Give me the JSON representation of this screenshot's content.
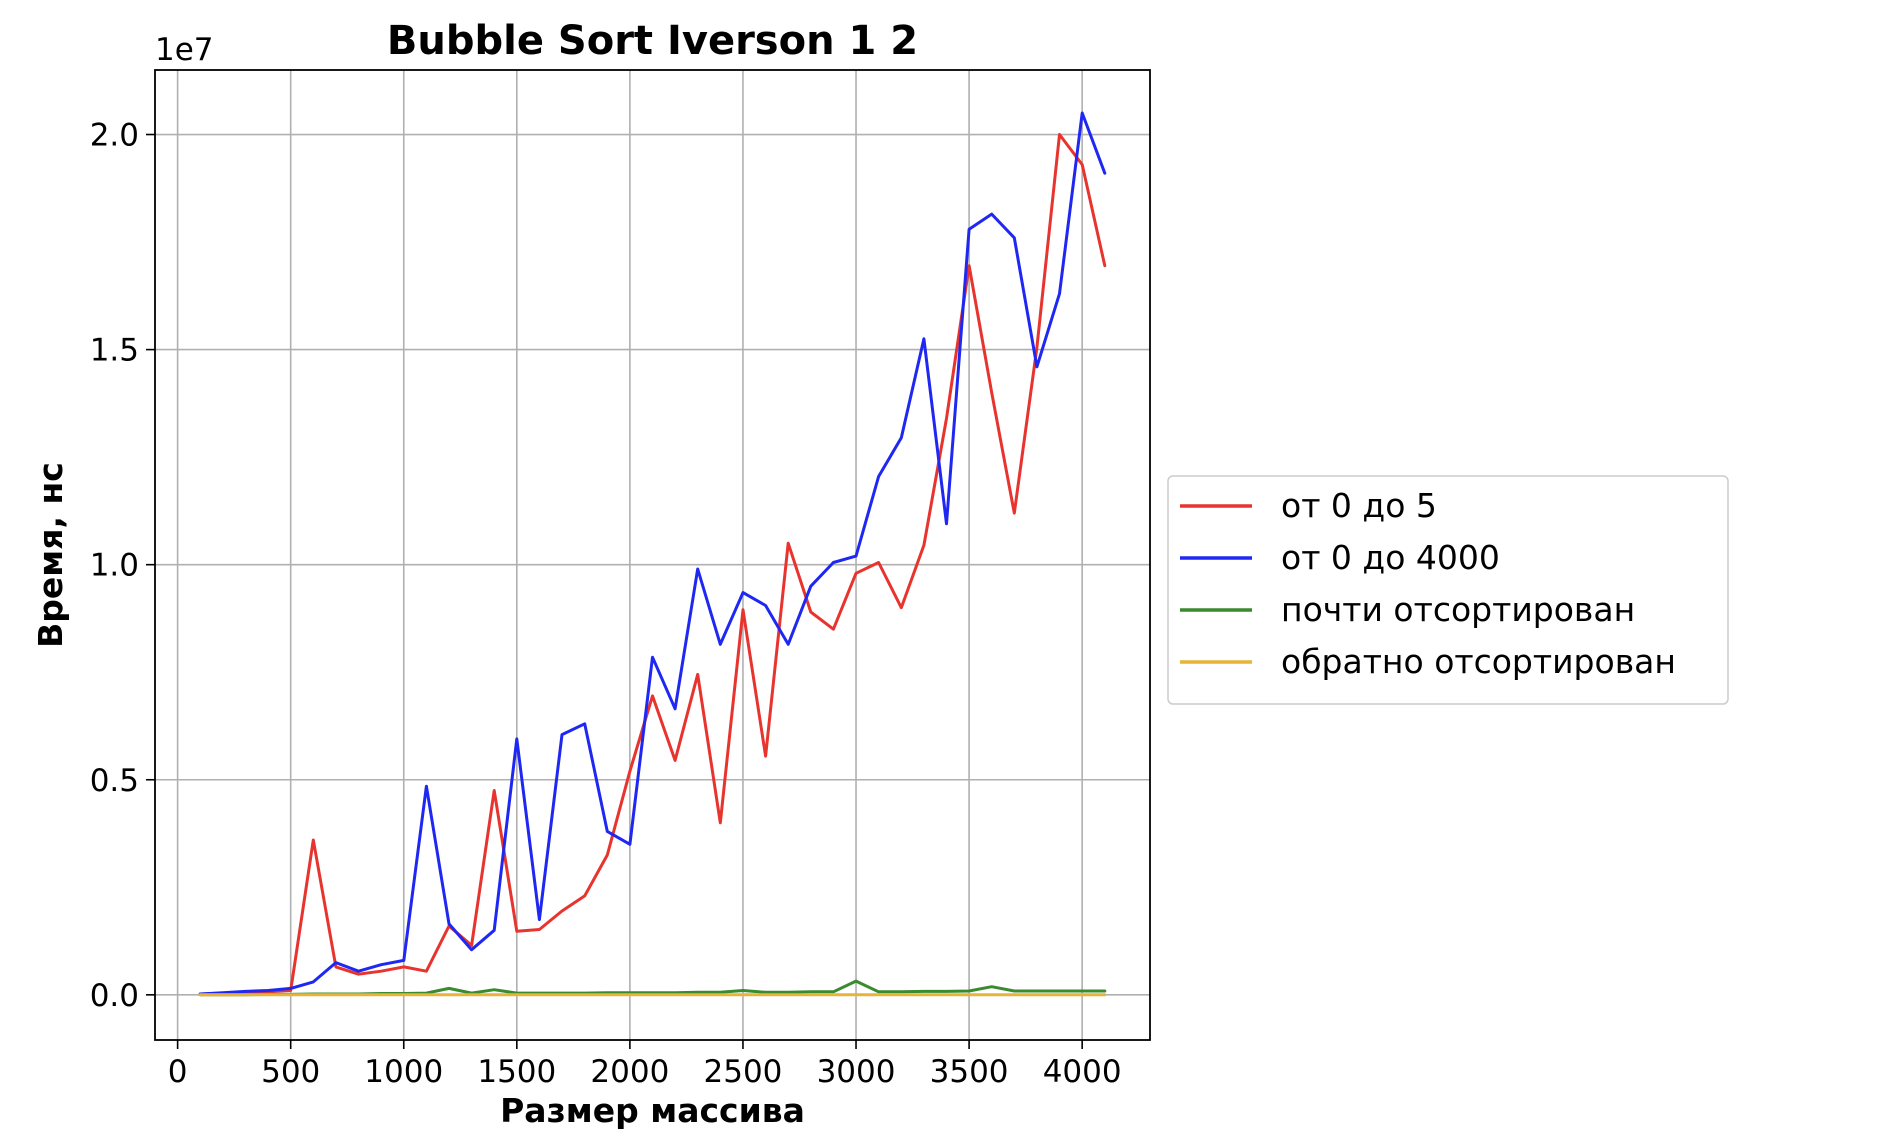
{
  "chart_data": {
    "type": "line",
    "title": "Bubble Sort Iverson 1 2",
    "xlabel": "Размер массива",
    "ylabel": "Время, нс",
    "y_offset_label": "1e7",
    "xlim": [
      -100,
      4300
    ],
    "ylim": [
      -1050000,
      21500000
    ],
    "x_ticks": [
      0,
      500,
      1000,
      1500,
      2000,
      2500,
      3000,
      3500,
      4000
    ],
    "x_tick_labels": [
      "0",
      "500",
      "1000",
      "1500",
      "2000",
      "2500",
      "3000",
      "3500",
      "4000"
    ],
    "y_ticks": [
      0,
      5000000,
      10000000,
      15000000,
      20000000
    ],
    "y_tick_labels": [
      "0.0",
      "0.5",
      "1.0",
      "1.5",
      "2.0"
    ],
    "grid": true,
    "legend_position": "outside-right",
    "x": [
      100,
      200,
      300,
      400,
      500,
      600,
      700,
      800,
      900,
      1000,
      1100,
      1200,
      1300,
      1400,
      1500,
      1600,
      1700,
      1800,
      1900,
      2000,
      2100,
      2200,
      2300,
      2400,
      2500,
      2600,
      2700,
      2800,
      2900,
      3000,
      3100,
      3200,
      3300,
      3400,
      3500,
      3600,
      3700,
      3800,
      3900,
      4000,
      4100
    ],
    "series": [
      {
        "name": "от 0 до 5",
        "color": "#e8342e",
        "values": [
          20000,
          40000,
          50000,
          70000,
          100000,
          3600000,
          650000,
          480000,
          550000,
          650000,
          550000,
          1600000,
          1150000,
          4750000,
          1480000,
          1520000,
          1950000,
          2300000,
          3250000,
          5200000,
          6950000,
          5450000,
          7450000,
          4000000,
          8950000,
          5550000,
          10500000,
          8900000,
          8500000,
          9800000,
          10050000,
          9000000,
          10450000,
          13400000,
          16950000,
          14000000,
          11200000,
          15050000,
          20000000,
          19300000,
          16950000
        ]
      },
      {
        "name": "от 0 до 4000",
        "color": "#1f28f2",
        "values": [
          20000,
          50000,
          80000,
          100000,
          150000,
          300000,
          750000,
          550000,
          700000,
          800000,
          4850000,
          1650000,
          1050000,
          1500000,
          5950000,
          1750000,
          6050000,
          6300000,
          3800000,
          3500000,
          7850000,
          6650000,
          9900000,
          8150000,
          9350000,
          9050000,
          8150000,
          9500000,
          10050000,
          10200000,
          12050000,
          12950000,
          15250000,
          10950000,
          17800000,
          18150000,
          17600000,
          14600000,
          16300000,
          20500000,
          19100000
        ]
      },
      {
        "name": "почти отсортирован",
        "color": "#3a8a2e",
        "values": [
          0,
          0,
          0,
          10000,
          10000,
          20000,
          20000,
          20000,
          30000,
          30000,
          40000,
          150000,
          40000,
          120000,
          40000,
          40000,
          40000,
          40000,
          50000,
          50000,
          50000,
          50000,
          60000,
          60000,
          100000,
          60000,
          60000,
          70000,
          70000,
          320000,
          70000,
          70000,
          80000,
          80000,
          90000,
          190000,
          90000,
          90000,
          90000,
          90000,
          90000
        ]
      },
      {
        "name": "обратно отсортирован",
        "color": "#e8b339",
        "values": [
          0,
          0,
          0,
          0,
          0,
          0,
          0,
          0,
          0,
          0,
          0,
          0,
          0,
          0,
          0,
          0,
          0,
          0,
          0,
          0,
          0,
          0,
          0,
          0,
          0,
          0,
          0,
          0,
          0,
          0,
          0,
          0,
          0,
          0,
          0,
          0,
          0,
          0,
          0,
          0,
          0
        ]
      }
    ]
  }
}
